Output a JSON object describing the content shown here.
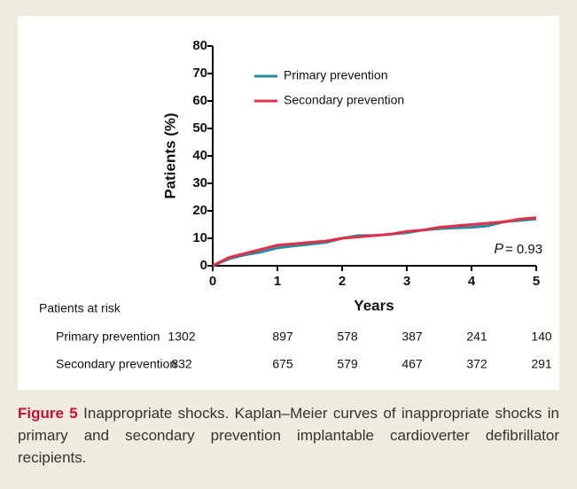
{
  "chart_data": {
    "type": "line",
    "x": [
      0,
      0.25,
      0.5,
      0.75,
      1,
      1.25,
      1.5,
      1.75,
      2,
      2.25,
      2.5,
      2.75,
      3,
      3.25,
      3.5,
      3.75,
      4,
      4.25,
      4.5,
      4.75,
      5
    ],
    "series": [
      {
        "name": "Primary prevention",
        "color": "#2a8a9e",
        "values": [
          0,
          2.5,
          4,
          5,
          6.5,
          7.2,
          7.8,
          8.5,
          10,
          11,
          11,
          11.5,
          12,
          13,
          13.5,
          13.8,
          14,
          14.5,
          16,
          16.5,
          17
        ]
      },
      {
        "name": "Secondary prevention",
        "color": "#e0304a",
        "values": [
          0,
          3,
          4.5,
          6,
          7.5,
          8,
          8.5,
          9,
          10,
          10.5,
          11,
          11.5,
          12.5,
          13,
          14,
          14.5,
          15,
          15.5,
          16,
          17,
          17.5
        ]
      }
    ],
    "xlabel": "Years",
    "ylabel": "Patients (%)",
    "xlim": [
      0,
      5
    ],
    "xticks": [
      0,
      1,
      2,
      3,
      4,
      5
    ],
    "ylim": [
      0,
      80
    ],
    "yticks": [
      0,
      10,
      20,
      30,
      40,
      50,
      60,
      70,
      80
    ],
    "annotation": {
      "label": "P",
      "text": "= 0.93"
    },
    "risk_table": {
      "title": "Patients at risk",
      "rows": [
        {
          "name": "Primary prevention",
          "values": [
            "1302",
            "897",
            "578",
            "387",
            "241",
            "140"
          ]
        },
        {
          "name": "Secondary prevention",
          "values": [
            "832",
            "675",
            "579",
            "467",
            "372",
            "291"
          ]
        }
      ]
    }
  },
  "caption": {
    "label": "Figure 5",
    "text": "Inappropriate shocks. Kaplan–Meier curves of inappropriate shocks in primary and secondary prevention implantable cardioverter defibrillator recipients."
  }
}
